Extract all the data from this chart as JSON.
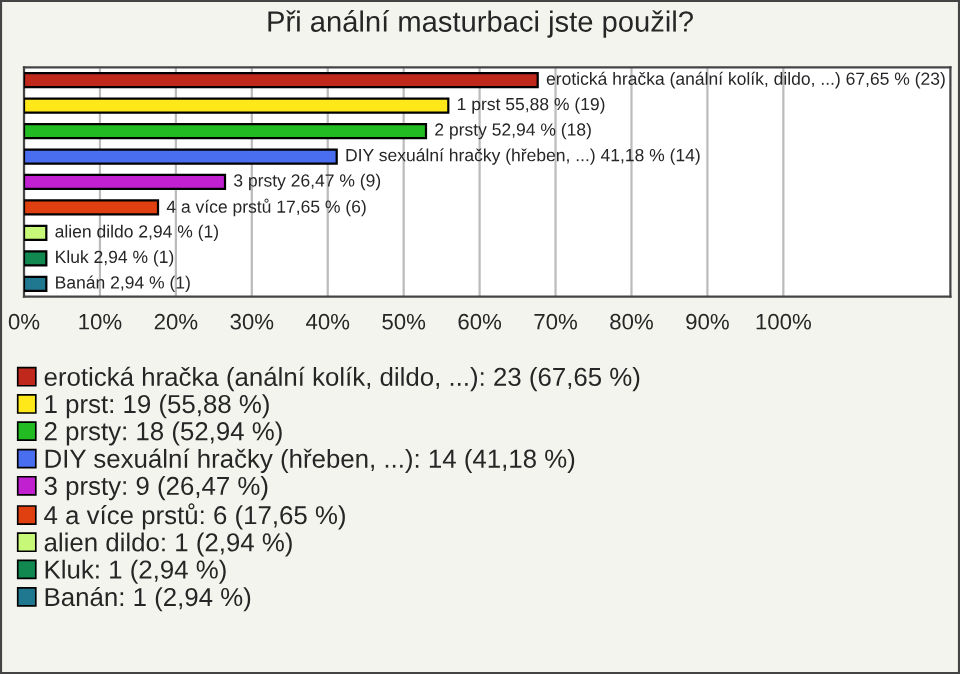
{
  "chart_data": {
    "type": "bar",
    "orientation": "horizontal",
    "title": "Při anální masturbaci jste použil?",
    "categories": [
      null,
      null,
      null,
      null,
      null,
      null,
      null,
      null,
      null
    ],
    "series": [
      {
        "name": "erotická hračka (anální kolík, dildo, ...): 23 (67,65 %)",
        "color": "#c0281c",
        "values": [
          67.65,
          null,
          null,
          null,
          null,
          null,
          null,
          null,
          null
        ],
        "value_labels": [
          "erotická hračka (anální kolík, dildo, ...) 67,65 % (23)",
          null,
          null,
          null,
          null,
          null,
          null,
          null,
          null
        ]
      },
      {
        "name": "1 prst: 19 (55,88 %)",
        "color": "#ffe81a",
        "values": [
          null,
          55.88,
          null,
          null,
          null,
          null,
          null,
          null,
          null
        ],
        "value_labels": [
          null,
          "1 prst 55,88 % (19)",
          null,
          null,
          null,
          null,
          null,
          null,
          null
        ]
      },
      {
        "name": "2 prsty: 18 (52,94 %)",
        "color": "#22bb22",
        "values": [
          null,
          null,
          52.94,
          null,
          null,
          null,
          null,
          null,
          null
        ],
        "value_labels": [
          null,
          null,
          "2 prsty 52,94 % (18)",
          null,
          null,
          null,
          null,
          null,
          null
        ]
      },
      {
        "name": "DIY sexuální hračky (hřeben, ...): 14 (41,18 %)",
        "color": "#4a6ef0",
        "values": [
          null,
          null,
          null,
          41.18,
          null,
          null,
          null,
          null,
          null
        ],
        "value_labels": [
          null,
          null,
          null,
          "DIY sexuální hračky (hřeben, ...) 41,18 % (14)",
          null,
          null,
          null,
          null,
          null
        ]
      },
      {
        "name": "3 prsty: 9 (26,47 %)",
        "color": "#c020d0",
        "values": [
          null,
          null,
          null,
          null,
          26.47,
          null,
          null,
          null,
          null
        ],
        "value_labels": [
          null,
          null,
          null,
          null,
          "3 prsty 26,47 % (9)",
          null,
          null,
          null,
          null
        ]
      },
      {
        "name": "4 a více prstů: 6 (17,65 %)",
        "color": "#e04010",
        "values": [
          null,
          null,
          null,
          null,
          null,
          17.65,
          null,
          null,
          null
        ],
        "value_labels": [
          null,
          null,
          null,
          null,
          null,
          "4 a více prstů 17,65 % (6)",
          null,
          null,
          null
        ]
      },
      {
        "name": "alien dildo: 1 (2,94 %)",
        "color": "#c8f878",
        "values": [
          null,
          null,
          null,
          null,
          null,
          null,
          2.94,
          null,
          null
        ],
        "value_labels": [
          null,
          null,
          null,
          null,
          null,
          null,
          "alien dildo 2,94 % (1)",
          null,
          null
        ]
      },
      {
        "name": "Kluk: 1 (2,94 %)",
        "color": "#108850",
        "values": [
          null,
          null,
          null,
          null,
          null,
          null,
          null,
          2.94,
          null
        ],
        "value_labels": [
          null,
          null,
          null,
          null,
          null,
          null,
          null,
          "Kluk 2,94 % (1)",
          null
        ]
      },
      {
        "name": "Banán: 1 (2,94 %)",
        "color": "#207890",
        "values": [
          null,
          null,
          null,
          null,
          null,
          null,
          null,
          null,
          2.94
        ],
        "value_labels": [
          null,
          null,
          null,
          null,
          null,
          null,
          null,
          null,
          "Banán 2,94 % (1)"
        ]
      }
    ],
    "xlim": [
      0,
      122
    ],
    "xticks": [
      {
        "value": 0,
        "label": "0%"
      },
      {
        "value": 10,
        "label": "10%"
      },
      {
        "value": 20,
        "label": "20%"
      },
      {
        "value": 30,
        "label": "30%"
      },
      {
        "value": 40,
        "label": "40%"
      },
      {
        "value": 50,
        "label": "50%"
      },
      {
        "value": 60,
        "label": "60%"
      },
      {
        "value": 70,
        "label": "70%"
      },
      {
        "value": 80,
        "label": "80%"
      },
      {
        "value": 90,
        "label": "90%"
      },
      {
        "value": 100,
        "label": "100%"
      }
    ],
    "tick_labels": "x",
    "grid": "x",
    "legend": "bottom"
  }
}
